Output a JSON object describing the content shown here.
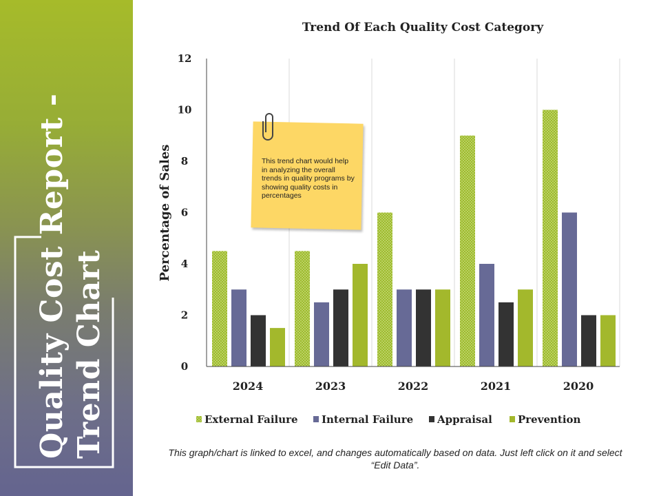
{
  "slide": {
    "title_line1": "Quality Cost Report -",
    "title_line2": "Trend Chart",
    "footer": "This graph/chart is linked to excel, and changes automatically based on data. Just left click on it and select “Edit Data”."
  },
  "note": {
    "text": "This  trend chart  would help in analyzing the overall trends in quality programs by showing quality costs in percentages",
    "icon": "paperclip-icon"
  },
  "colors": {
    "panel_top": "#a6bb2a",
    "panel_bottom": "#64648f",
    "external_failure": "#9dbb2d",
    "internal_failure": "#676a96",
    "appraisal": "#333333",
    "prevention": "#a3b82c",
    "note": "#fdd765"
  },
  "chart_data": {
    "type": "bar",
    "title": "Trend Of Each Quality Cost Category",
    "xlabel": "",
    "ylabel": "Percentage of Sales",
    "ylim": [
      0,
      12
    ],
    "yticks": [
      0,
      2,
      4,
      6,
      8,
      10,
      12
    ],
    "categories": [
      "2024",
      "2023",
      "2022",
      "2021",
      "2020"
    ],
    "series": [
      {
        "name": "External Failure",
        "key": "external_failure",
        "pattern": "dotted",
        "values": [
          4.5,
          4.5,
          6,
          9,
          10
        ]
      },
      {
        "name": "Internal Failure",
        "key": "internal_failure",
        "pattern": "solid",
        "values": [
          3,
          2.5,
          3,
          4,
          6
        ]
      },
      {
        "name": "Appraisal",
        "key": "appraisal",
        "pattern": "solid",
        "values": [
          2,
          3,
          3,
          2.5,
          2
        ]
      },
      {
        "name": "Prevention",
        "key": "prevention",
        "pattern": "solid",
        "values": [
          1.5,
          4,
          3,
          3,
          2
        ]
      }
    ],
    "legend_position": "bottom",
    "grid": "vertical"
  }
}
